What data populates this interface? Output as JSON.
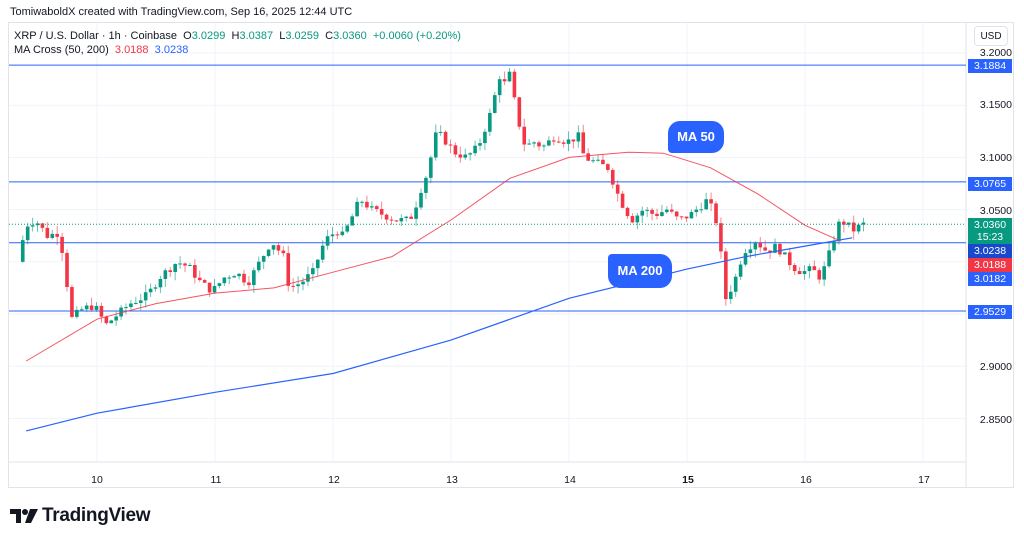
{
  "attribution": "TomiwaboldX created with TradingView.com, Sep 16, 2025 12:44 UTC",
  "legend": {
    "symbol": "XRP / U.S. Dollar · 1h · Coinbase",
    "o_label": "O",
    "o": "3.0299",
    "h_label": "H",
    "h": "3.0387",
    "l_label": "L",
    "l": "3.0259",
    "c_label": "C",
    "c": "3.0360",
    "change": "+0.0060 (+0.20%)",
    "indicator": "MA Cross (50, 200)",
    "ma50_value": "3.0188",
    "ma200_value": "3.0238"
  },
  "currency_button": "USD",
  "colors": {
    "up": "#089981",
    "down": "#f23645",
    "ma50": "#f23645",
    "ma200": "#2962ff",
    "hline": "#2962ff",
    "grid": "#f0f3fa"
  },
  "price_axis": {
    "ticks": [
      "3.2000",
      "3.1500",
      "3.1000",
      "3.0500",
      "2.9000",
      "2.8500"
    ]
  },
  "price_tags": {
    "resistance_top": "3.1884",
    "resistance_mid": "3.0765",
    "last_price": "3.0360",
    "countdown": "15:23",
    "ma200": "3.0238",
    "ma50": "3.0188",
    "support_mid": "3.0182",
    "support_low": "2.9529"
  },
  "time_axis": {
    "ticks": [
      "10",
      "11",
      "12",
      "13",
      "14",
      "15",
      "16",
      "17"
    ],
    "bold_tick": "15"
  },
  "annotations": {
    "ma50_label": "MA 50",
    "ma200_label": "MA 200"
  },
  "brand": "TradingView",
  "chart_data": {
    "type": "candlestick",
    "title": "XRP / U.S. Dollar · 1h · Coinbase",
    "indicator": "MA Cross (50, 200)",
    "xlabel": "",
    "ylabel": "USD",
    "x_ticks": [
      "10",
      "11",
      "12",
      "13",
      "14",
      "15",
      "16",
      "17"
    ],
    "y_ticks": [
      2.85,
      2.9,
      3.05,
      3.1,
      3.15,
      3.2
    ],
    "ylim": [
      2.81,
      3.215
    ],
    "horizontal_lines": [
      3.1884,
      3.0765,
      3.0182,
      2.9529
    ],
    "last": {
      "open": 3.0299,
      "high": 3.0387,
      "low": 3.0259,
      "close": 3.036,
      "change": 0.006,
      "change_pct": 0.2
    },
    "ma50_last": 3.0188,
    "ma200_last": 3.0238,
    "candles_approx_daily_closes": {
      "Sep 9": 3.0,
      "Sep 10": 2.99,
      "Sep 11": 3.0,
      "Sep 12": 3.04,
      "Sep 13": 3.13,
      "Sep 14": 3.09,
      "Sep 15": 3.04,
      "Sep 16": 3.036
    },
    "ma50_series": [
      [
        9.4,
        2.905
      ],
      [
        10.0,
        2.945
      ],
      [
        10.5,
        2.96
      ],
      [
        11.0,
        2.97
      ],
      [
        11.5,
        2.975
      ],
      [
        12.0,
        2.99
      ],
      [
        12.5,
        3.005
      ],
      [
        13.0,
        3.04
      ],
      [
        13.5,
        3.08
      ],
      [
        14.0,
        3.1
      ],
      [
        14.5,
        3.105
      ],
      [
        14.8,
        3.104
      ],
      [
        15.2,
        3.09
      ],
      [
        15.6,
        3.065
      ],
      [
        16.0,
        3.035
      ],
      [
        16.3,
        3.02
      ]
    ],
    "ma200_series": [
      [
        9.4,
        2.838
      ],
      [
        10.0,
        2.855
      ],
      [
        11.0,
        2.875
      ],
      [
        12.0,
        2.893
      ],
      [
        13.0,
        2.925
      ],
      [
        14.0,
        2.965
      ],
      [
        15.0,
        2.993
      ],
      [
        15.5,
        3.005
      ],
      [
        16.0,
        3.015
      ],
      [
        16.4,
        3.023
      ]
    ]
  }
}
